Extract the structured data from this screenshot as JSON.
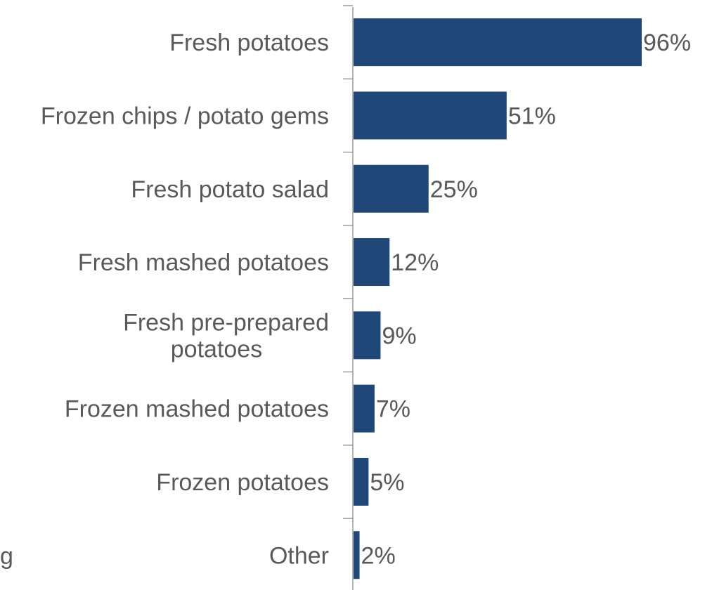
{
  "chart_data": {
    "type": "bar",
    "orientation": "horizontal",
    "categories": [
      "Fresh potatoes",
      "Frozen chips / potato gems",
      "Fresh potato salad",
      "Fresh mashed potatoes",
      "Fresh pre-prepared potatoes",
      "Frozen mashed potatoes",
      "Frozen potatoes",
      "Other"
    ],
    "category_display_lines": [
      [
        "Fresh potatoes"
      ],
      [
        "Frozen chips / potato gems"
      ],
      [
        "Fresh potato salad"
      ],
      [
        "Fresh mashed potatoes"
      ],
      [
        "Fresh pre-prepared",
        "potatoes"
      ],
      [
        "Frozen mashed potatoes"
      ],
      [
        "Frozen potatoes"
      ],
      [
        "Other"
      ]
    ],
    "values": [
      96,
      51,
      25,
      12,
      9,
      7,
      5,
      2
    ],
    "value_labels": [
      "96%",
      "51%",
      "25%",
      "12%",
      "9%",
      "7%",
      "5%",
      "2%"
    ],
    "unit": "%",
    "xlim": [
      0,
      100
    ],
    "grid": false,
    "legend": "none",
    "colors": {
      "bar": "#1f4879",
      "text": "#595959",
      "axis": "#8c8c8c"
    },
    "title": "",
    "xlabel": "",
    "ylabel": ""
  },
  "clipped_edge_text": "g"
}
